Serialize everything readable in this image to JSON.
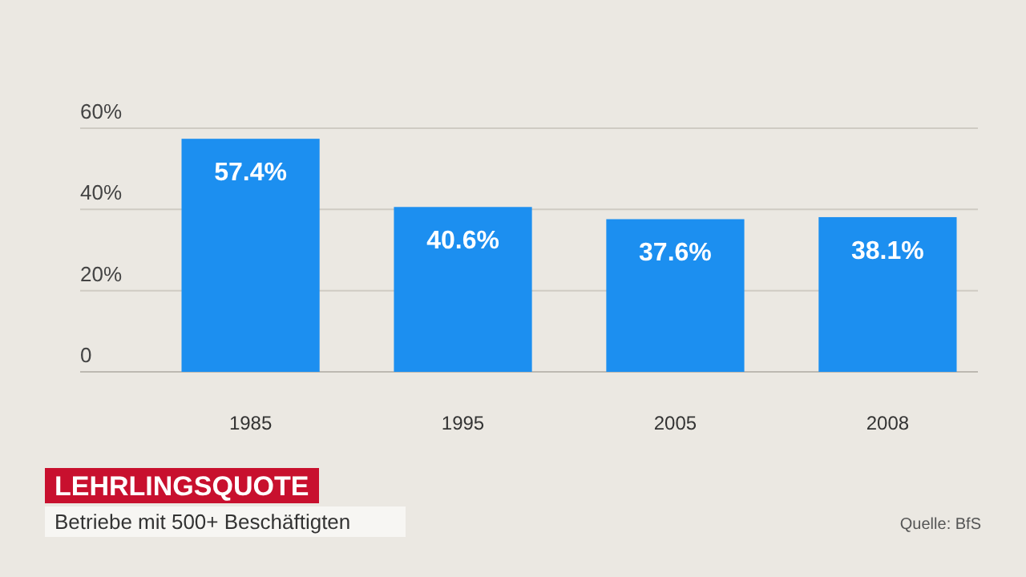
{
  "chart_data": {
    "type": "bar",
    "title": "LEHRLINGSQUOTE",
    "subtitle": "Betriebe mit 500+ Beschäftigten",
    "annotations": [
      "Quelle: BfS"
    ],
    "categories": [
      "1985",
      "1995",
      "2005",
      "2008"
    ],
    "values": [
      57.4,
      40.6,
      37.6,
      38.1
    ],
    "value_labels": [
      "57.4%",
      "40.6%",
      "37.6%",
      "38.1%"
    ],
    "color": "#1c8ff0",
    "ylim": [
      0,
      60
    ],
    "yticks": [
      {
        "value": 0,
        "label": "0"
      },
      {
        "value": 20,
        "label": "20%"
      },
      {
        "value": 40,
        "label": "40%"
      },
      {
        "value": 60,
        "label": "60%"
      }
    ],
    "grid": "y"
  }
}
